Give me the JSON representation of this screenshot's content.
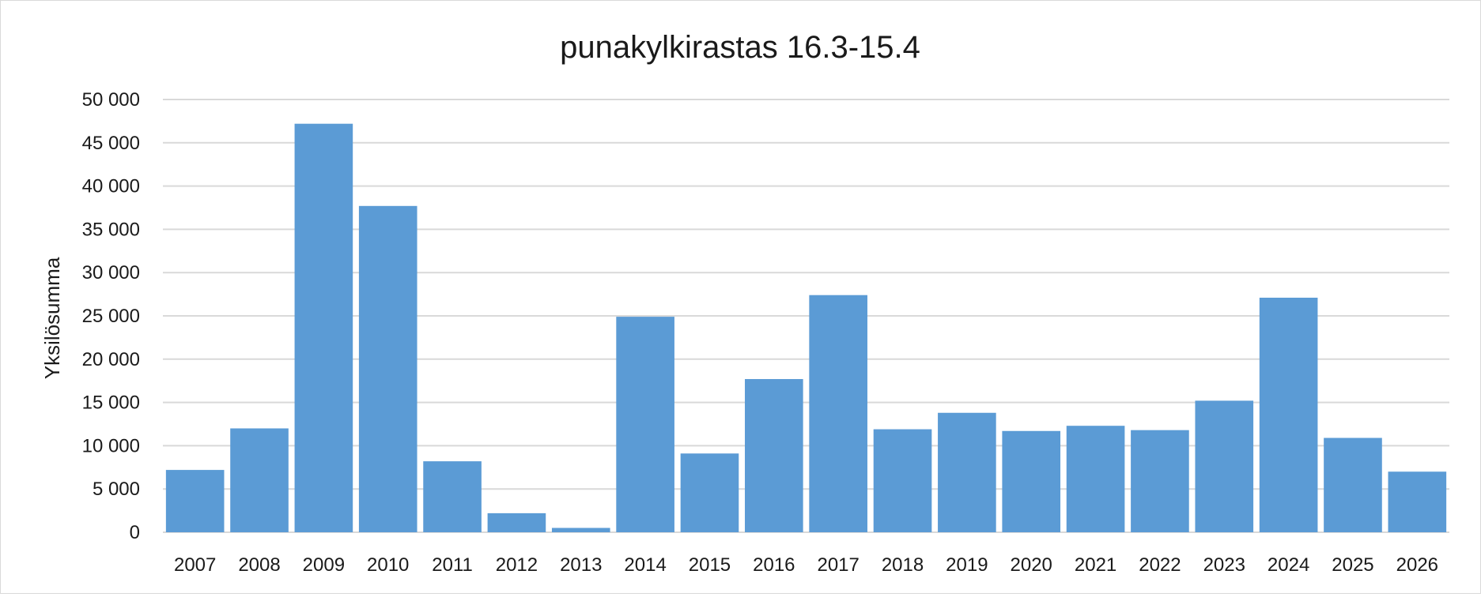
{
  "chart_data": {
    "type": "bar",
    "title": "punakylkirastas 16.3-15.4",
    "xlabel": "",
    "ylabel": "Yksilösumma",
    "categories": [
      "2007",
      "2008",
      "2009",
      "2010",
      "2011",
      "2012",
      "2013",
      "2014",
      "2015",
      "2016",
      "2017",
      "2018",
      "2019",
      "2020",
      "2021",
      "2022",
      "2023",
      "2024",
      "2025",
      "2026"
    ],
    "values": [
      7200,
      12000,
      47200,
      37700,
      8200,
      2200,
      500,
      24900,
      9100,
      17700,
      27400,
      11900,
      13800,
      11700,
      12300,
      11800,
      15200,
      27100,
      10900,
      7000
    ],
    "ylim": [
      0,
      50000
    ],
    "yticks": [
      0,
      5000,
      10000,
      15000,
      20000,
      25000,
      30000,
      35000,
      40000,
      45000,
      50000
    ],
    "ytick_labels": [
      "0",
      "5 000",
      "10 000",
      "15 000",
      "20 000",
      "25 000",
      "30 000",
      "35 000",
      "40 000",
      "45 000",
      "50 000"
    ],
    "grid": true,
    "legend": "none",
    "bar_color": "#5b9bd5"
  }
}
